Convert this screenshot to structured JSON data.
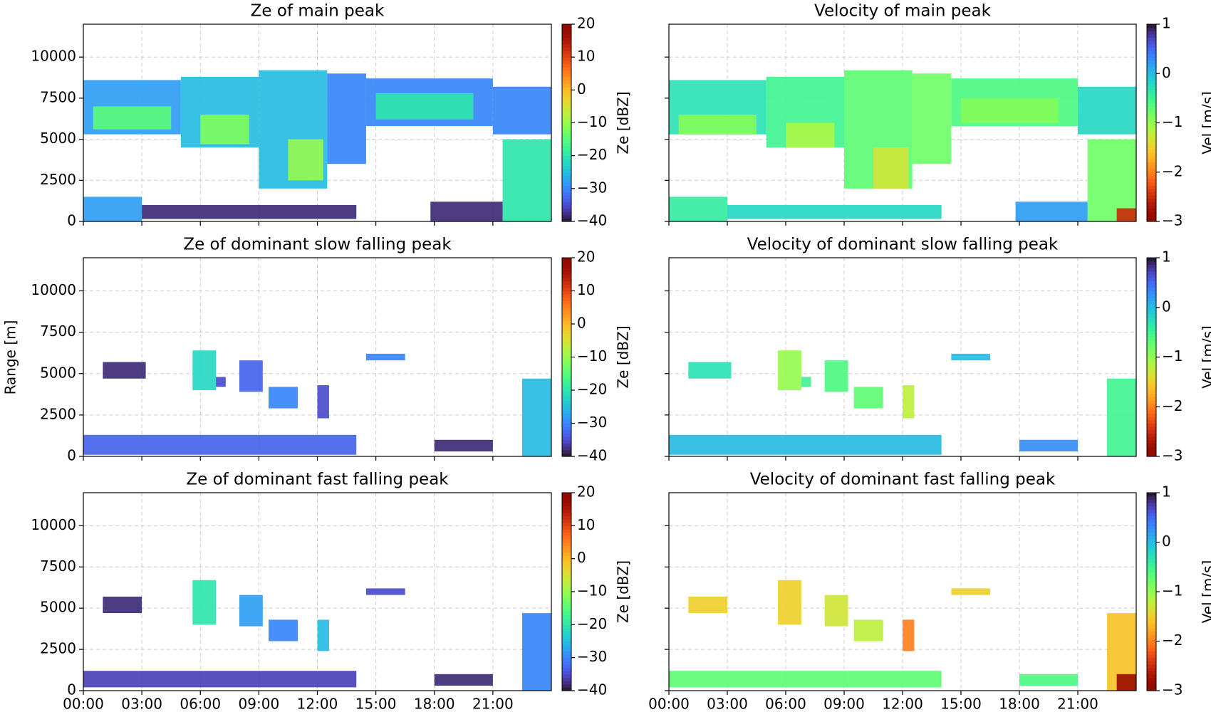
{
  "chart_data": {
    "type": "heatmap-grid",
    "ylabel": "Range [m]",
    "grid": true,
    "xlim": [
      0,
      24
    ],
    "xticks": [
      {
        "value": 0,
        "label": "00:00"
      },
      {
        "value": 3,
        "label": "03:00"
      },
      {
        "value": 6,
        "label": "06:00"
      },
      {
        "value": 9,
        "label": "09:00"
      },
      {
        "value": 12,
        "label": "12:00"
      },
      {
        "value": 15,
        "label": "15:00"
      },
      {
        "value": 18,
        "label": "18:00"
      },
      {
        "value": 21,
        "label": "21:00"
      }
    ],
    "ylim": [
      0,
      12000
    ],
    "yticks": [
      0,
      2500,
      5000,
      7500,
      10000
    ],
    "panels": [
      {
        "type": "heatmap",
        "title": "Ze of main peak",
        "colormap": "turbo",
        "clabel": "Ze [dBZ]",
        "clim": [
          -40,
          20
        ],
        "cticks": [
          {
            "value": -40,
            "label": "−40"
          },
          {
            "value": -30,
            "label": "−30"
          },
          {
            "value": -20,
            "label": "−20"
          },
          {
            "value": -10,
            "label": "−10"
          },
          0,
          10,
          20
        ],
        "cells": [
          [
            0,
            5,
            5300,
            8600,
            -28
          ],
          [
            0.5,
            4.5,
            5600,
            7000,
            -15
          ],
          [
            5,
            9,
            4500,
            8800,
            -25
          ],
          [
            6,
            8.5,
            4700,
            6500,
            -12
          ],
          [
            9,
            12.5,
            2000,
            9200,
            -25
          ],
          [
            10.5,
            12.3,
            2500,
            5000,
            -10
          ],
          [
            12.5,
            14.5,
            3500,
            9000,
            -30
          ],
          [
            14.5,
            21,
            5800,
            8700,
            -30
          ],
          [
            15,
            20,
            6200,
            7800,
            -20
          ],
          [
            21,
            24,
            5300,
            8200,
            -30
          ],
          [
            21.5,
            24,
            0,
            5000,
            -20
          ],
          [
            0,
            3,
            0,
            1500,
            -28
          ],
          [
            3,
            14,
            150,
            1000,
            -38
          ],
          [
            17.8,
            21.5,
            0,
            1200,
            -38
          ]
        ]
      },
      {
        "type": "heatmap",
        "title": "Velocity of main peak",
        "colormap": "turbo_r",
        "clabel": "Vel [m/s]",
        "clim": [
          -3,
          1
        ],
        "cticks": [
          {
            "value": -3,
            "label": "−3"
          },
          {
            "value": -2,
            "label": "−2"
          },
          {
            "value": -1,
            "label": "−1"
          },
          0,
          1
        ],
        "cells": [
          [
            0,
            5,
            5300,
            8600,
            -0.3
          ],
          [
            0.5,
            4.5,
            5300,
            6500,
            -0.9
          ],
          [
            5,
            9,
            4500,
            8800,
            -0.5
          ],
          [
            6,
            8.5,
            4500,
            6000,
            -1.1
          ],
          [
            9,
            12.5,
            2000,
            9200,
            -0.7
          ],
          [
            10.5,
            12.3,
            2000,
            4500,
            -1.3
          ],
          [
            12.5,
            14.5,
            3500,
            9000,
            -0.8
          ],
          [
            14.5,
            21,
            5800,
            8700,
            -0.6
          ],
          [
            15,
            20,
            6000,
            7500,
            -0.9
          ],
          [
            21,
            24,
            5300,
            8200,
            -0.2
          ],
          [
            21.5,
            24,
            0,
            5000,
            -0.8
          ],
          [
            0,
            3,
            0,
            1500,
            -0.4
          ],
          [
            3,
            14,
            150,
            1000,
            -0.2
          ],
          [
            17.8,
            21.5,
            0,
            1200,
            0.2
          ],
          [
            23,
            24,
            0,
            800,
            -2.5
          ]
        ]
      },
      {
        "type": "heatmap",
        "title": "Ze of dominant slow falling peak",
        "colormap": "turbo",
        "clabel": "Ze [dBZ]",
        "clim": [
          -40,
          20
        ],
        "cticks": [
          {
            "value": -40,
            "label": "−40"
          },
          {
            "value": -30,
            "label": "−30"
          },
          {
            "value": -20,
            "label": "−20"
          },
          {
            "value": -10,
            "label": "−10"
          },
          0,
          10,
          20
        ],
        "cells": [
          [
            1,
            3.2,
            4700,
            5700,
            -38
          ],
          [
            5.6,
            6.8,
            4000,
            6400,
            -22
          ],
          [
            6.8,
            7.3,
            4200,
            4800,
            -35
          ],
          [
            8,
            9.2,
            3900,
            5800,
            -33
          ],
          [
            9.5,
            11,
            2900,
            4200,
            -30
          ],
          [
            12,
            12.6,
            2300,
            4300,
            -35
          ],
          [
            14.5,
            16.5,
            5800,
            6200,
            -30
          ],
          [
            0,
            14,
            100,
            1300,
            -33
          ],
          [
            18,
            21,
            300,
            1000,
            -38
          ],
          [
            22.5,
            24,
            0,
            4700,
            -25
          ]
        ]
      },
      {
        "type": "heatmap",
        "title": "Velocity of dominant slow falling peak",
        "colormap": "turbo_r",
        "clabel": "Vel [m/s]",
        "clim": [
          -3,
          1
        ],
        "cticks": [
          {
            "value": -3,
            "label": "−3"
          },
          {
            "value": -2,
            "label": "−2"
          },
          {
            "value": -1,
            "label": "−1"
          },
          0,
          1
        ],
        "cells": [
          [
            1,
            3.2,
            4700,
            5700,
            -0.3
          ],
          [
            5.6,
            6.8,
            4000,
            6400,
            -1
          ],
          [
            6.8,
            7.3,
            4200,
            4800,
            -0.5
          ],
          [
            8,
            9.2,
            3900,
            5800,
            -0.6
          ],
          [
            9.5,
            11,
            2900,
            4200,
            -0.7
          ],
          [
            12,
            12.6,
            2300,
            4300,
            -1.2
          ],
          [
            14.5,
            16.5,
            5800,
            6200,
            0
          ],
          [
            0,
            14,
            100,
            1300,
            0
          ],
          [
            18,
            21,
            300,
            1000,
            0.3
          ],
          [
            22.5,
            24,
            0,
            4700,
            -0.5
          ]
        ]
      },
      {
        "type": "heatmap",
        "title": "Ze of dominant fast falling peak",
        "colormap": "turbo",
        "clabel": "Ze [dBZ]",
        "clim": [
          -40,
          20
        ],
        "cticks": [
          {
            "value": -40,
            "label": "−40"
          },
          {
            "value": -30,
            "label": "−30"
          },
          {
            "value": -20,
            "label": "−20"
          },
          {
            "value": -10,
            "label": "−10"
          },
          0,
          10,
          20
        ],
        "cells": [
          [
            1,
            3,
            4700,
            5700,
            -38
          ],
          [
            5.6,
            6.8,
            4000,
            6700,
            -20
          ],
          [
            8,
            9.2,
            3900,
            5800,
            -28
          ],
          [
            9.5,
            11,
            3000,
            4300,
            -30
          ],
          [
            12,
            12.6,
            2400,
            4300,
            -25
          ],
          [
            14.5,
            16.5,
            5800,
            6200,
            -35
          ],
          [
            0,
            14,
            200,
            1200,
            -36
          ],
          [
            18,
            21,
            300,
            1000,
            -38
          ],
          [
            22.5,
            24,
            0,
            4700,
            -30
          ]
        ]
      },
      {
        "type": "heatmap",
        "title": "Velocity of dominant fast falling peak",
        "colormap": "turbo_r",
        "clabel": "Vel [m/s]",
        "clim": [
          -3,
          1
        ],
        "cticks": [
          {
            "value": -3,
            "label": "−3"
          },
          {
            "value": -2,
            "label": "−2"
          },
          {
            "value": -1,
            "label": "−1"
          },
          0,
          1
        ],
        "cells": [
          [
            1,
            3,
            4700,
            5700,
            -1.5
          ],
          [
            5.6,
            6.8,
            4000,
            6700,
            -1.5
          ],
          [
            8,
            9.2,
            3900,
            5800,
            -1.3
          ],
          [
            9.5,
            11,
            3000,
            4300,
            -1.2
          ],
          [
            12,
            12.6,
            2400,
            4300,
            -2
          ],
          [
            14.5,
            16.5,
            5800,
            6200,
            -1.5
          ],
          [
            0,
            14,
            200,
            1200,
            -0.7
          ],
          [
            18,
            21,
            300,
            1000,
            -0.6
          ],
          [
            22.5,
            24,
            0,
            4700,
            -1.6
          ],
          [
            23,
            24,
            0,
            1000,
            -2.8
          ]
        ]
      }
    ]
  }
}
